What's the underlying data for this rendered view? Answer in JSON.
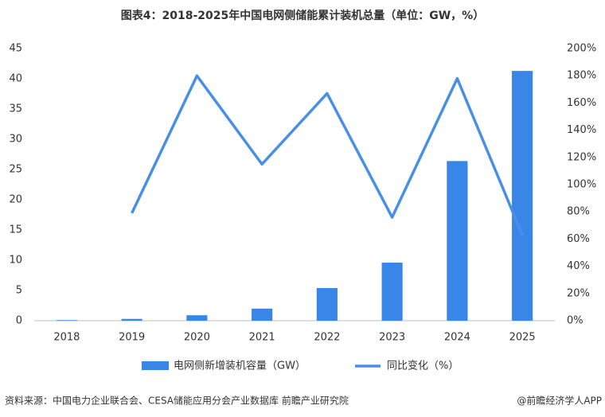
{
  "chart_data": {
    "type": "bar-line",
    "title": "图表4：2018-2025年中国电网侧储能累计装机总量（单位：GW，%）",
    "categories": [
      "2018",
      "2019",
      "2020",
      "2021",
      "2022",
      "2023",
      "2024",
      "2025"
    ],
    "series": [
      {
        "name": "电网侧新增装机容量（GW）",
        "type": "bar",
        "color": "#3a86e8",
        "values": [
          0.1,
          0.3,
          0.9,
          2.0,
          5.4,
          9.6,
          26.4,
          41.3
        ]
      },
      {
        "name": "同比变化（%）",
        "type": "line",
        "color": "#4a8fe6",
        "axis": "y2",
        "values": [
          null,
          79,
          180,
          115,
          167,
          76,
          178,
          63
        ]
      }
    ],
    "ylim": [
      0,
      45
    ],
    "yticks": [
      0,
      5,
      10,
      15,
      20,
      25,
      30,
      35,
      40,
      45
    ],
    "y2lim": [
      0,
      200
    ],
    "y2ticks": [
      {
        "value": 0,
        "label": "0%"
      },
      {
        "value": 20,
        "label": "20%"
      },
      {
        "value": 40,
        "label": "40%"
      },
      {
        "value": 60,
        "label": "60%"
      },
      {
        "value": 80,
        "label": "80%"
      },
      {
        "value": 100,
        "label": "100%"
      },
      {
        "value": 120,
        "label": "120%"
      },
      {
        "value": 140,
        "label": "140%"
      },
      {
        "value": 160,
        "label": "160%"
      },
      {
        "value": 180,
        "label": "180%"
      },
      {
        "value": 200,
        "label": "200%"
      }
    ],
    "grid": false,
    "legend": "bottom",
    "source": "资料来源：中国电力企业联合会、CESA储能应用分会产业数据库 前瞻产业研究院",
    "credit": "@前瞻经济学人APP"
  }
}
